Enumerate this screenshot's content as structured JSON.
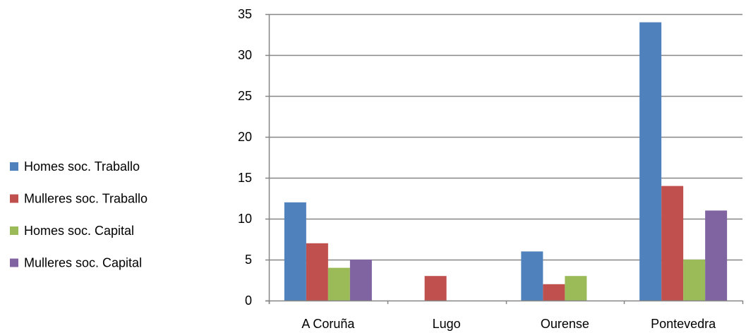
{
  "chart_data": {
    "type": "bar",
    "title": "",
    "xlabel": "",
    "ylabel": "",
    "categories": [
      "A Coruña",
      "Lugo",
      "Ourense",
      "Pontevedra"
    ],
    "series": [
      {
        "name": "Homes soc. Traballo",
        "color": "#4F81BD",
        "values": [
          12,
          0,
          6,
          34
        ]
      },
      {
        "name": "Mulleres soc. Traballo",
        "color": "#C0504D",
        "values": [
          7,
          3,
          2,
          14
        ]
      },
      {
        "name": "Homes soc. Capital",
        "color": "#9BBB59",
        "values": [
          4,
          0,
          3,
          5
        ]
      },
      {
        "name": "Mulleres soc. Capital",
        "color": "#8064A2",
        "values": [
          5,
          0,
          0,
          11
        ]
      }
    ],
    "ylim": [
      0,
      35
    ],
    "yticks": [
      0,
      5,
      10,
      15,
      20,
      25,
      30,
      35
    ],
    "grid": true,
    "legend": "left"
  }
}
